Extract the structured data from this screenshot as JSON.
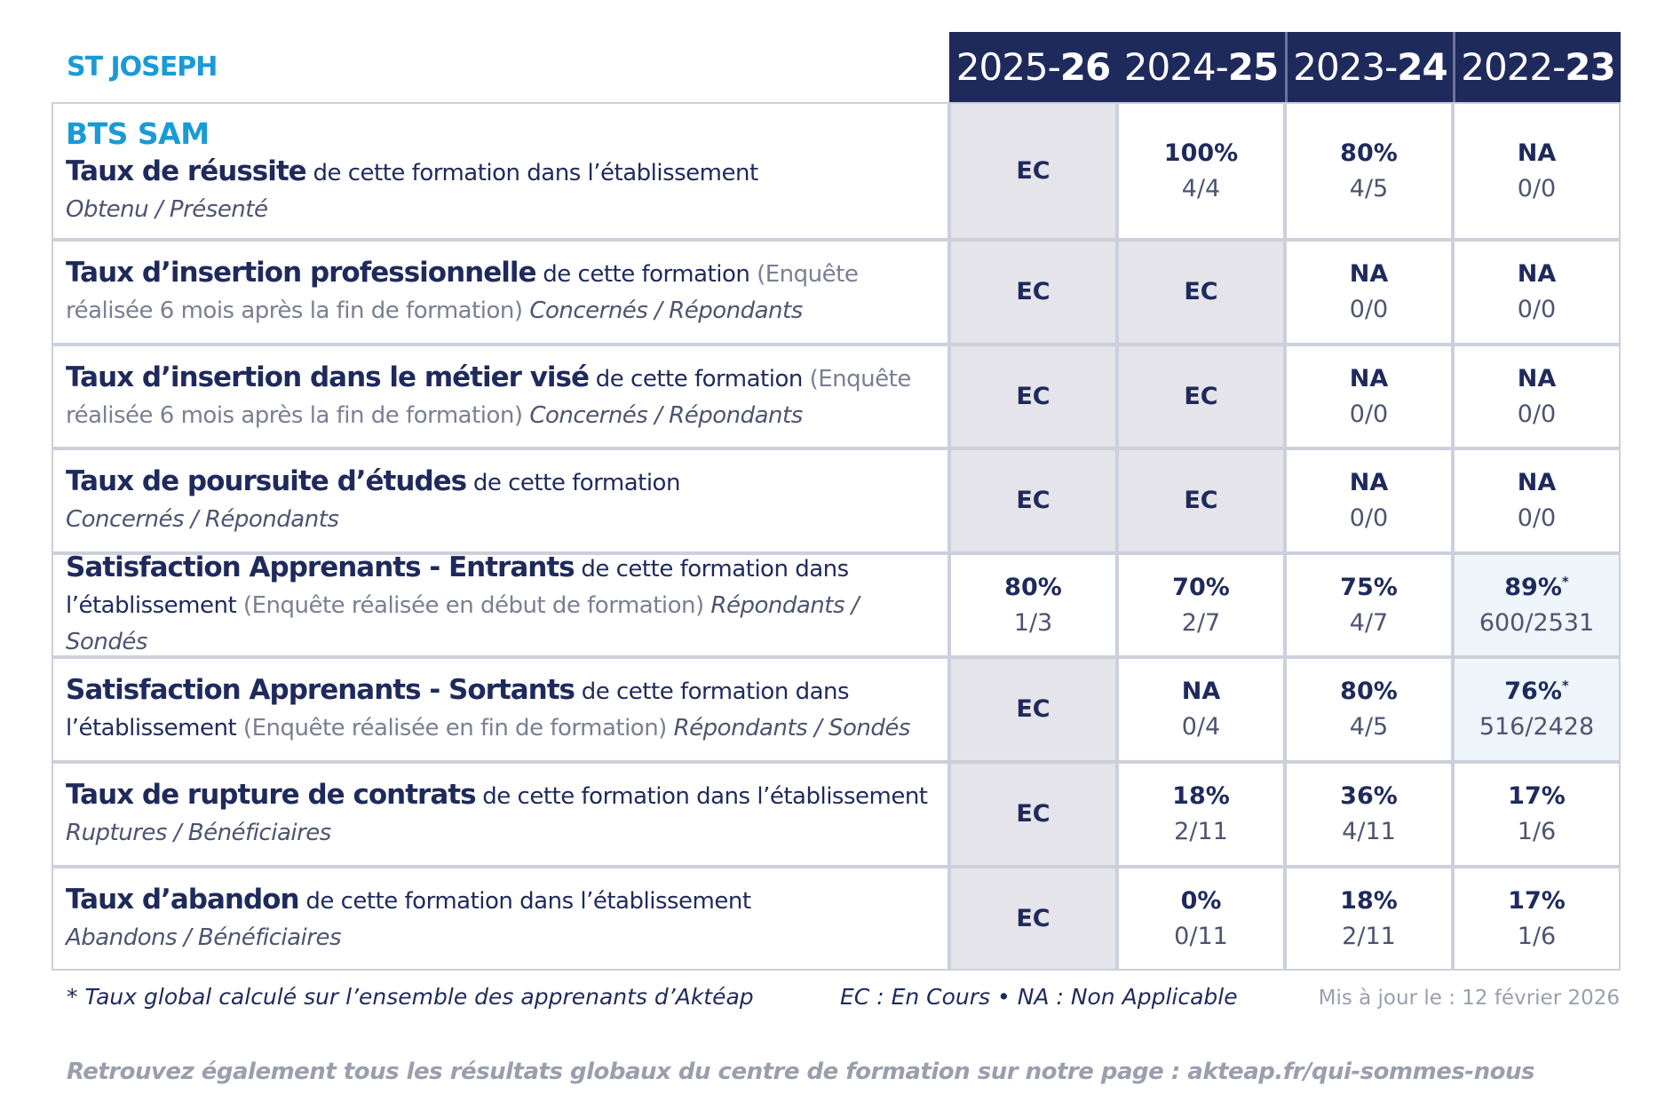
{
  "header": {
    "school": "ST JOSEPH",
    "years": [
      {
        "start": "2025-",
        "end": "26"
      },
      {
        "start": "2024-",
        "end": "25"
      },
      {
        "start": "2023-",
        "end": "24"
      },
      {
        "start": "2022-",
        "end": "23"
      }
    ]
  },
  "table": {
    "rows": [
      {
        "heading": "BTS SAM",
        "title": "Taux de réussite",
        "desc": "de cette formation dans l’établissement",
        "sub": "Obtenu / Présenté",
        "cells": [
          {
            "value": "EC"
          },
          {
            "value": "100%",
            "fraction": "4/4"
          },
          {
            "value": "80%",
            "fraction": "4/5"
          },
          {
            "value": "NA",
            "fraction": "0/0"
          }
        ]
      },
      {
        "title": "Taux d’insertion professionnelle",
        "desc": "de cette formation",
        "note": "(Enquête réalisée 6 mois après la fin de formation)",
        "sub": "Concernés / Répondants",
        "cells": [
          {
            "value": "EC"
          },
          {
            "value": "EC"
          },
          {
            "value": "NA",
            "fraction": "0/0"
          },
          {
            "value": "NA",
            "fraction": "0/0"
          }
        ]
      },
      {
        "title": "Taux d’insertion dans le métier visé",
        "desc": "de cette formation",
        "note": "(Enquête réalisée 6 mois après la fin de formation)",
        "sub": "Concernés / Répondants",
        "cells": [
          {
            "value": "EC"
          },
          {
            "value": "EC"
          },
          {
            "value": "NA",
            "fraction": "0/0"
          },
          {
            "value": "NA",
            "fraction": "0/0"
          }
        ]
      },
      {
        "title": "Taux de poursuite d’études",
        "desc": "de cette formation",
        "sub": "Concernés / Répondants",
        "cells": [
          {
            "value": "EC"
          },
          {
            "value": "EC"
          },
          {
            "value": "NA",
            "fraction": "0/0"
          },
          {
            "value": "NA",
            "fraction": "0/0"
          }
        ]
      },
      {
        "title": "Satisfaction Apprenants - Entrants",
        "desc": "de cette formation dans l’établissement",
        "note": "(Enquête réalisée en début de formation)",
        "sub": "Répondants / Sondés",
        "cells": [
          {
            "value": "80%",
            "fraction": "1/3"
          },
          {
            "value": "70%",
            "fraction": "2/7"
          },
          {
            "value": "75%",
            "fraction": "4/7"
          },
          {
            "value": "89%",
            "mark": "*",
            "fraction": "600/2531"
          }
        ]
      },
      {
        "title": "Satisfaction Apprenants - Sortants",
        "desc": "de cette formation dans l’établissement",
        "note": "(Enquête réalisée en fin de formation)",
        "sub": "Répondants / Sondés",
        "cells": [
          {
            "value": "EC"
          },
          {
            "value": "NA",
            "fraction": "0/4"
          },
          {
            "value": "80%",
            "fraction": "4/5"
          },
          {
            "value": "76%",
            "mark": "*",
            "fraction": "516/2428"
          }
        ]
      },
      {
        "title": "Taux de rupture de contrats",
        "desc": "de cette formation dans l’établissement",
        "sub": "Ruptures / Bénéficiaires",
        "cells": [
          {
            "value": "EC"
          },
          {
            "value": "18%",
            "fraction": "2/11"
          },
          {
            "value": "36%",
            "fraction": "4/11"
          },
          {
            "value": "17%",
            "fraction": "1/6"
          }
        ]
      },
      {
        "title": "Taux d’abandon",
        "desc": "de cette formation dans l’établissement",
        "sub": "Abandons / Bénéficiaires",
        "cells": [
          {
            "value": "EC"
          },
          {
            "value": "0%",
            "fraction": "0/11"
          },
          {
            "value": "18%",
            "fraction": "2/11"
          },
          {
            "value": "17%",
            "fraction": "1/6"
          }
        ]
      }
    ]
  },
  "footer": {
    "footnote": "*  Taux global calculé sur l’ensemble des apprenants d’Aktéap",
    "legend": "EC : En Cours  •  NA : Non Applicable",
    "updated": "Mis à jour le : 12 février 2026",
    "link": "Retrouvez également tous les résultats globaux du centre de formation sur notre page : akteap.fr/qui-sommes-nous"
  }
}
